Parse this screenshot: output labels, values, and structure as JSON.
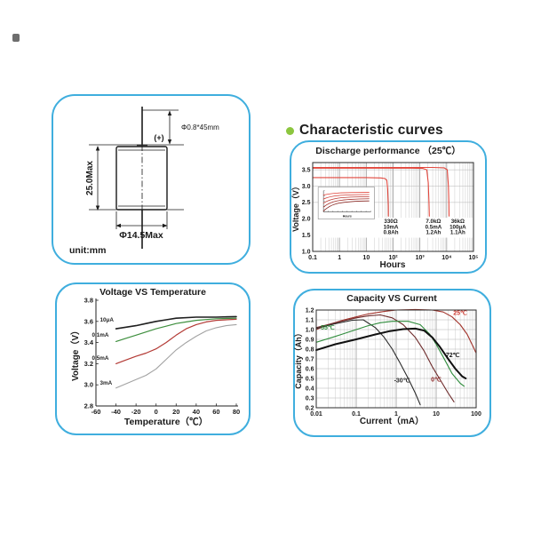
{
  "page": {
    "background": "#ffffff",
    "panel_border_color": "#3FAEDE"
  },
  "header": {
    "title": "Characteristic curves",
    "bullet_color": "#8CC63F"
  },
  "battery_drawing": {
    "lead_dimension": "Φ0.8*45mm",
    "polarity": "(+)",
    "height_dimension": "25.0Max",
    "diameter_dimension": "Φ14.5Max",
    "unit_note": "unit:mm"
  },
  "chart_data": [
    {
      "id": "discharge",
      "type": "line",
      "title": "Discharge performance （25℃）",
      "xlabel": "Hours",
      "ylabel": "Voltage（V）",
      "x_scale": "log",
      "x_range": [
        0.1,
        100000
      ],
      "x_tick_labels": [
        "0.1",
        "1",
        "10",
        "10²",
        "10³",
        "10⁴",
        "10⁵"
      ],
      "ylim": [
        1.0,
        3.72
      ],
      "y_ticks": [
        3.5,
        3.0,
        2.5,
        2.0,
        1.5,
        1.0
      ],
      "curve_color": "#E2473D",
      "grid": true,
      "series": [
        {
          "name": "330Ω 10mA load",
          "points": [
            [
              0.1,
              3.26
            ],
            [
              10,
              3.26
            ],
            [
              35,
              3.25
            ],
            [
              50,
              3.23
            ],
            [
              58,
              3.18
            ],
            [
              63,
              2.9
            ],
            [
              66,
              2.4
            ],
            [
              66.5,
              2.08
            ]
          ]
        },
        {
          "name": "7.0kΩ 0.5mA load",
          "points": [
            [
              0.1,
              3.55
            ],
            [
              500,
              3.55
            ],
            [
              1300,
              3.54
            ],
            [
              1800,
              3.5
            ],
            [
              2050,
              3.1
            ],
            [
              2180,
              2.5
            ],
            [
              2250,
              2.08
            ]
          ]
        },
        {
          "name": "36kΩ 100μA load",
          "points": [
            [
              0.1,
              3.57
            ],
            [
              3000,
              3.57
            ],
            [
              8000,
              3.56
            ],
            [
              10500,
              3.5
            ],
            [
              11600,
              3.0
            ],
            [
              12100,
              2.5
            ],
            [
              12300,
              2.08
            ]
          ]
        }
      ],
      "annotations": [
        {
          "x": 83,
          "lines": [
            "330Ω",
            "10mA",
            "0.8Ah"
          ]
        },
        {
          "x": 3200,
          "lines": [
            "7.0kΩ",
            "0.5mA",
            "1.2Ah"
          ]
        },
        {
          "x": 26000,
          "lines": [
            "36kΩ",
            "100μA",
            "1.1Ah"
          ]
        }
      ],
      "inset": {
        "xlabel": "Hours",
        "description": "initial discharge detail curves"
      }
    },
    {
      "id": "voltage-vs-temperature",
      "type": "line",
      "title": "Voltage VS Temperature",
      "xlabel": "Temperature（℃）",
      "ylabel": "Voltage（V）",
      "x_scale": "linear",
      "xlim": [
        -60,
        80
      ],
      "x_ticks": [
        -60,
        -40,
        -20,
        0,
        20,
        40,
        60,
        80
      ],
      "ylim": [
        2.8,
        3.8
      ],
      "y_ticks": [
        2.8,
        3.0,
        3.2,
        3.4,
        3.6,
        3.8
      ],
      "grid": false,
      "series": [
        {
          "name": "10μA",
          "color": "#1f1f1f",
          "width": 1.6,
          "label_at": [
            -56,
            3.6
          ],
          "points": [
            [
              -40,
              3.53
            ],
            [
              -30,
              3.545
            ],
            [
              -20,
              3.56
            ],
            [
              -10,
              3.58
            ],
            [
              0,
              3.6
            ],
            [
              10,
              3.615
            ],
            [
              20,
              3.63
            ],
            [
              40,
              3.64
            ],
            [
              60,
              3.64
            ],
            [
              80,
              3.645
            ]
          ]
        },
        {
          "name": "0.1mA",
          "color": "#3E8F3E",
          "width": 1.2,
          "label_at": [
            -64,
            3.455
          ],
          "points": [
            [
              -40,
              3.41
            ],
            [
              -30,
              3.44
            ],
            [
              -20,
              3.47
            ],
            [
              -10,
              3.5
            ],
            [
              0,
              3.53
            ],
            [
              10,
              3.555
            ],
            [
              20,
              3.58
            ],
            [
              30,
              3.595
            ],
            [
              40,
              3.61
            ],
            [
              60,
              3.625
            ],
            [
              80,
              3.63
            ]
          ]
        },
        {
          "name": "0.5mA",
          "color": "#B33A35",
          "width": 1.2,
          "label_at": [
            -64,
            3.235
          ],
          "points": [
            [
              -40,
              3.2
            ],
            [
              -30,
              3.235
            ],
            [
              -20,
              3.27
            ],
            [
              -10,
              3.3
            ],
            [
              0,
              3.34
            ],
            [
              10,
              3.4
            ],
            [
              20,
              3.47
            ],
            [
              30,
              3.53
            ],
            [
              40,
              3.57
            ],
            [
              50,
              3.595
            ],
            [
              60,
              3.61
            ],
            [
              80,
              3.62
            ]
          ]
        },
        {
          "name": "3mA",
          "color": "#A2A2A2",
          "width": 1.1,
          "label_at": [
            -56,
            3.0
          ],
          "points": [
            [
              -40,
              2.97
            ],
            [
              -30,
              3.01
            ],
            [
              -20,
              3.05
            ],
            [
              -10,
              3.09
            ],
            [
              0,
              3.15
            ],
            [
              10,
              3.24
            ],
            [
              20,
              3.33
            ],
            [
              30,
              3.4
            ],
            [
              40,
              3.46
            ],
            [
              50,
              3.51
            ],
            [
              60,
              3.54
            ],
            [
              70,
              3.56
            ],
            [
              80,
              3.57
            ]
          ]
        }
      ]
    },
    {
      "id": "capacity-vs-current",
      "type": "line",
      "title": "Capacity VS Current",
      "xlabel": "Current（mA）",
      "ylabel": "Capacity（Ah）",
      "x_scale": "log",
      "x_range": [
        0.01,
        100
      ],
      "x_tick_labels": [
        "0.01",
        "0.1",
        "1",
        "10",
        "100"
      ],
      "ylim": [
        0.2,
        1.2
      ],
      "y_ticks": [
        1.2,
        1.1,
        1.0,
        0.9,
        0.8,
        0.7,
        0.6,
        0.5,
        0.4,
        0.3,
        0.2
      ],
      "grid": true,
      "series": [
        {
          "name": "25℃",
          "color": "#A2332B",
          "label_color": "#D03A30",
          "label_at": [
            40,
            1.15
          ],
          "points": [
            [
              0.01,
              1.0
            ],
            [
              0.02,
              1.05
            ],
            [
              0.05,
              1.1
            ],
            [
              0.1,
              1.13
            ],
            [
              0.2,
              1.16
            ],
            [
              0.5,
              1.185
            ],
            [
              1,
              1.2
            ],
            [
              3,
              1.205
            ],
            [
              8,
              1.2
            ],
            [
              15,
              1.18
            ],
            [
              25,
              1.13
            ],
            [
              40,
              1.05
            ],
            [
              60,
              0.95
            ],
            [
              100,
              0.76
            ]
          ]
        },
        {
          "name": "0℃",
          "color": "#6E2B2B",
          "label_color": "#8F2B2B",
          "label_at": [
            10,
            0.47
          ],
          "points": [
            [
              0.01,
              1.02
            ],
            [
              0.03,
              1.07
            ],
            [
              0.1,
              1.12
            ],
            [
              0.2,
              1.14
            ],
            [
              0.4,
              1.15
            ],
            [
              0.8,
              1.12
            ],
            [
              1.5,
              1.05
            ],
            [
              3,
              0.92
            ],
            [
              5,
              0.78
            ],
            [
              8,
              0.62
            ],
            [
              12,
              0.5
            ],
            [
              20,
              0.35
            ],
            [
              28,
              0.26
            ]
          ]
        },
        {
          "name": "-30℃",
          "color": "#2B2B2B",
          "label_color": "#2B2B2B",
          "label_at": [
            1.4,
            0.46
          ],
          "points": [
            [
              0.01,
              1.01
            ],
            [
              0.03,
              1.06
            ],
            [
              0.08,
              1.095
            ],
            [
              0.15,
              1.1
            ],
            [
              0.3,
              1.02
            ],
            [
              0.5,
              0.92
            ],
            [
              0.8,
              0.8
            ],
            [
              1.2,
              0.67
            ],
            [
              2,
              0.5
            ],
            [
              3,
              0.35
            ],
            [
              4,
              0.23
            ]
          ]
        },
        {
          "name": "55℃",
          "color": "#2F8C3C",
          "label_color": "#2F8C3C",
          "label_anchor": "start",
          "label_at": [
            0.013,
            1.0
          ],
          "points": [
            [
              0.01,
              0.87
            ],
            [
              0.03,
              0.93
            ],
            [
              0.1,
              1.0
            ],
            [
              0.2,
              1.04
            ],
            [
              0.4,
              1.07
            ],
            [
              0.8,
              1.085
            ],
            [
              2,
              1.085
            ],
            [
              4,
              1.05
            ],
            [
              7,
              0.95
            ],
            [
              10,
              0.85
            ],
            [
              15,
              0.72
            ],
            [
              25,
              0.55
            ],
            [
              40,
              0.45
            ],
            [
              50,
              0.42
            ]
          ]
        },
        {
          "name": "72℃",
          "color": "#101010",
          "label_color": "#101010",
          "width": 2,
          "label_at": [
            26,
            0.72
          ],
          "points": [
            [
              0.01,
              0.79
            ],
            [
              0.03,
              0.85
            ],
            [
              0.1,
              0.9
            ],
            [
              0.3,
              0.95
            ],
            [
              0.7,
              0.985
            ],
            [
              1.5,
              1.005
            ],
            [
              3,
              1.01
            ],
            [
              5,
              0.99
            ],
            [
              8,
              0.92
            ],
            [
              12,
              0.83
            ],
            [
              20,
              0.7
            ],
            [
              30,
              0.6
            ],
            [
              45,
              0.52
            ],
            [
              55,
              0.5
            ]
          ]
        }
      ]
    }
  ]
}
